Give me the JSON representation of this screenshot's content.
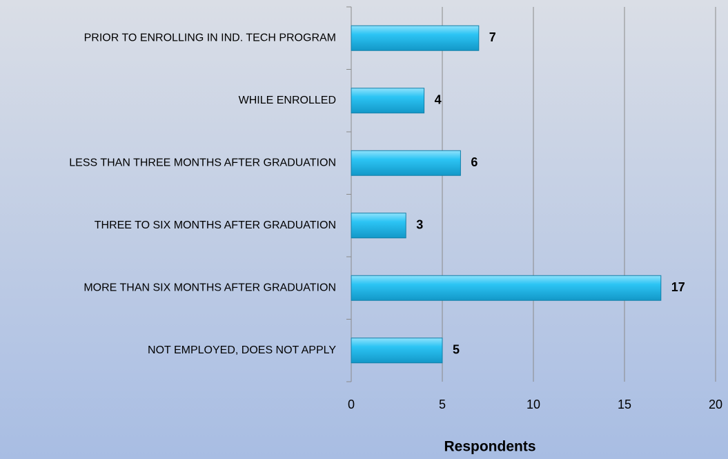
{
  "chart_data": {
    "type": "bar",
    "orientation": "horizontal",
    "x_axis_label": "Respondents",
    "categories": [
      "PRIOR TO ENROLLING IN IND. TECH PROGRAM",
      "WHILE ENROLLED",
      "LESS THAN THREE MONTHS AFTER GRADUATION",
      "THREE TO SIX MONTHS AFTER GRADUATION",
      "MORE THAN SIX MONTHS AFTER GRADUATION",
      "NOT EMPLOYED, DOES NOT APPLY"
    ],
    "values": [
      7,
      4,
      6,
      3,
      17,
      5
    ],
    "color": "#1fbdf0",
    "xlim": [
      0,
      20
    ],
    "xticks": [
      0,
      5,
      10,
      15,
      20
    ],
    "grid": true
  }
}
